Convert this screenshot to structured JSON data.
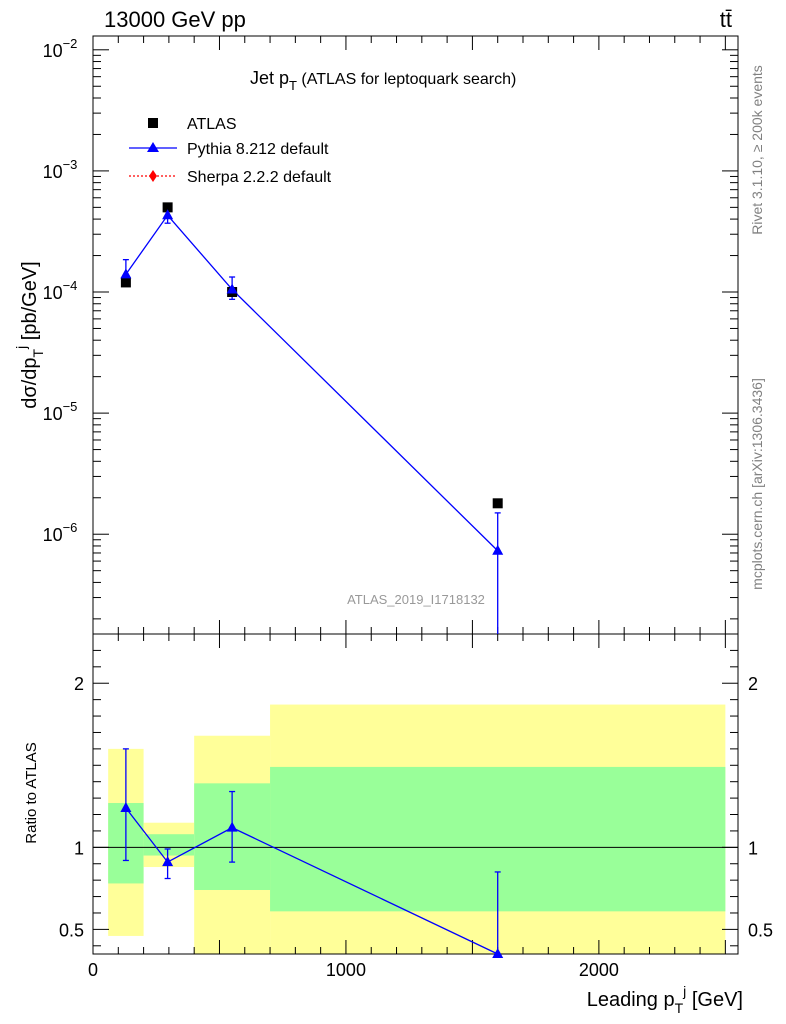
{
  "header": {
    "energy": "13000 GeV pp",
    "process": "tt̄",
    "title_main": "Jet p",
    "title_sub": "T",
    "title_rest": " (ATLAS for leptoquark search)",
    "analysis_id": "ATLAS_2019_I1718132"
  },
  "side_text": {
    "rivet": "Rivet 3.1.10, ≥ 200k events",
    "mcplots": "mcplots.cern.ch [arXiv:1306.3436]"
  },
  "axes": {
    "top_ylabel": "dσ/dp",
    "top_ylabel_sub": "T",
    "top_ylabel_sup": "j",
    "top_ylabel_unit": " [pb/GeV]",
    "bottom_ylabel": "Ratio to ATLAS",
    "xlabel": "Leading p",
    "xlabel_sub": "T",
    "xlabel_sup": "j",
    "xlabel_unit": " [GeV]"
  },
  "legend": [
    {
      "label": "ATLAS",
      "marker": "square",
      "color": "#000000"
    },
    {
      "label": "Pythia 8.212 default",
      "marker": "triangle",
      "color": "#0000ff"
    },
    {
      "label": "Sherpa 2.2.2 default",
      "marker": "diamond",
      "color": "#ff0000"
    }
  ],
  "colors": {
    "atlas": "#000000",
    "pythia": "#0000ff",
    "sherpa": "#ff0000",
    "band_outer": "#ffff99",
    "band_inner": "#99ff99"
  },
  "chart_data": {
    "type": "scatter",
    "xlim": [
      0,
      2550
    ],
    "xticks": [
      0,
      1000,
      2000
    ],
    "top": {
      "yscale": "log",
      "ylim": [
        1.5e-07,
        0.013
      ],
      "ytick_labels": [
        {
          "value": 1e-06,
          "base": "10",
          "exp": "−6"
        },
        {
          "value": 1e-05,
          "base": "10",
          "exp": "−5"
        },
        {
          "value": 0.0001,
          "base": "10",
          "exp": "−4"
        },
        {
          "value": 0.001,
          "base": "10",
          "exp": "−3"
        },
        {
          "value": 0.01,
          "base": "10",
          "exp": "−2"
        }
      ],
      "series": [
        {
          "name": "ATLAS",
          "x": [
            130,
            295,
            550,
            1600
          ],
          "y": [
            0.00012,
            0.0005,
            0.0001,
            1.8e-06
          ]
        },
        {
          "name": "Pythia 8.212 default",
          "x": [
            130,
            295,
            550,
            1600
          ],
          "y": [
            0.00014,
            0.00043,
            0.000105,
            7.3e-07
          ],
          "yerr_low": [
            1.8e-05,
            6e-05,
            1.8e-05,
            7.3e-07
          ],
          "yerr_high": [
            4.5e-05,
            6e-05,
            2.8e-05,
            7.7e-07
          ]
        }
      ]
    },
    "ratio": {
      "ylim": [
        0.35,
        2.3
      ],
      "yticks": [
        0.5,
        1,
        2
      ],
      "reference": 1,
      "bands": [
        {
          "x0": 60,
          "x1": 200,
          "yellow": [
            0.46,
            1.6
          ],
          "green": [
            0.78,
            1.27
          ]
        },
        {
          "x0": 200,
          "x1": 400,
          "yellow": [
            0.88,
            1.15
          ],
          "green": [
            0.95,
            1.08
          ]
        },
        {
          "x0": 400,
          "x1": 700,
          "yellow": [
            0.35,
            1.68
          ],
          "green": [
            0.74,
            1.39
          ]
        },
        {
          "x0": 700,
          "x1": 2500,
          "yellow": [
            0.35,
            1.87
          ],
          "green": [
            0.61,
            1.49
          ]
        }
      ],
      "series": [
        {
          "name": "Pythia 8.212 default",
          "x": [
            130,
            295,
            550,
            1600
          ],
          "y": [
            1.24,
            0.91,
            1.12,
            0.35
          ],
          "yerr_low": [
            0.32,
            0.1,
            0.21,
            0.35
          ],
          "yerr_high": [
            0.36,
            0.08,
            0.22,
            0.5
          ]
        }
      ]
    }
  }
}
